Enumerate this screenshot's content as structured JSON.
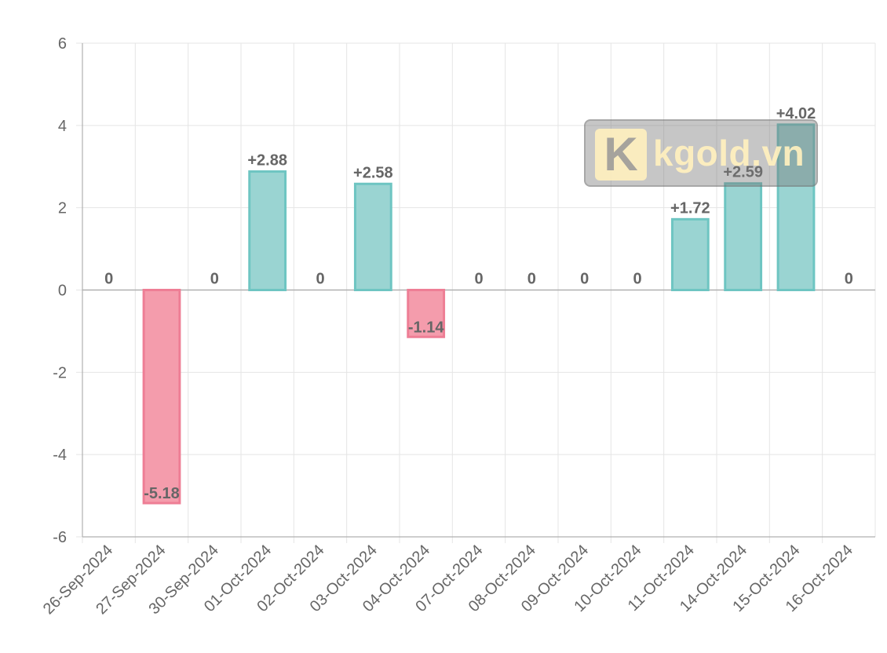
{
  "chart_data": {
    "type": "bar",
    "categories": [
      "26-Sep-2024",
      "27-Sep-2024",
      "30-Sep-2024",
      "01-Oct-2024",
      "02-Oct-2024",
      "03-Oct-2024",
      "04-Oct-2024",
      "07-Oct-2024",
      "08-Oct-2024",
      "09-Oct-2024",
      "10-Oct-2024",
      "11-Oct-2024",
      "14-Oct-2024",
      "15-Oct-2024",
      "16-Oct-2024"
    ],
    "values": [
      0,
      -5.18,
      0,
      2.88,
      0,
      2.58,
      -1.14,
      0,
      0,
      0,
      0,
      1.72,
      2.59,
      4.02,
      0
    ],
    "data_labels": [
      "0",
      "-5.18",
      "0",
      "+2.88",
      "0",
      "+2.58",
      "-1.14",
      "0",
      "0",
      "0",
      "0",
      "+1.72",
      "+2.59",
      "+4.02",
      "0"
    ],
    "ylim": [
      -6,
      6
    ],
    "yticks": [
      6,
      4,
      2,
      0,
      -2,
      -4,
      -6
    ],
    "ytick_labels": [
      "6",
      "4",
      "2",
      "0",
      "-2",
      "-4",
      "-6"
    ],
    "title": "",
    "xlabel": "",
    "ylabel": "",
    "grid": true,
    "colors": {
      "positive_fill": "#9ad4d2",
      "positive_stroke": "#6ec5c2",
      "negative_fill": "#f49cac",
      "negative_stroke": "#ee7e95",
      "grid": "#e5e5e5",
      "axis": "#b0b0b0"
    }
  },
  "watermark": {
    "text": "kgold.vn",
    "logo_letter": "K"
  }
}
